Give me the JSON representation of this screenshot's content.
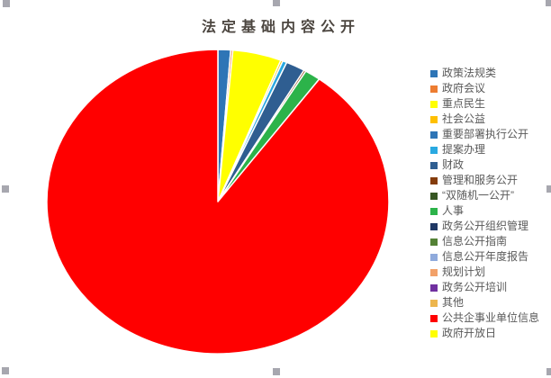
{
  "window": {
    "background": "#FFFFFF",
    "selection_handle_color": "#A7A7AF"
  },
  "chart_data": {
    "type": "pie",
    "title": "法定基础内容公开",
    "title_color": "#4C4640",
    "legend_position": "right",
    "legend_text_color": "#595959",
    "direction": "clockwise",
    "start_angle_deg": 0,
    "categories": [
      "政策法规类",
      "政府会议",
      "重点民生",
      "社会公益",
      "重要部署执行公开",
      "提案办理",
      "财政",
      "管理和服务公开",
      "“双随机一公开”",
      "人事",
      "政务公开组织管理",
      "信息公开指南",
      "信息公开年度报告",
      "规划计划",
      "政务公开培训",
      "其他",
      "公共企事业单位信息",
      "政府开放日"
    ],
    "values": [
      1.2,
      0.2,
      4.6,
      0.2,
      0,
      0.4,
      1.8,
      0.2,
      0,
      1.5,
      0,
      0,
      0,
      0,
      0,
      0,
      89.9,
      0
    ],
    "colors": [
      "#2E75B6",
      "#ED7D31",
      "#FFFF00",
      "#FFC000",
      "#2E75B6",
      "#29A9E1",
      "#2F5E91",
      "#843C0C",
      "#375623",
      "#2CB34A",
      "#1F3864",
      "#538135",
      "#8FAADC",
      "#F2A169",
      "#7030A0",
      "#EDB64E",
      "#FF0000",
      "#FFFF00"
    ]
  }
}
